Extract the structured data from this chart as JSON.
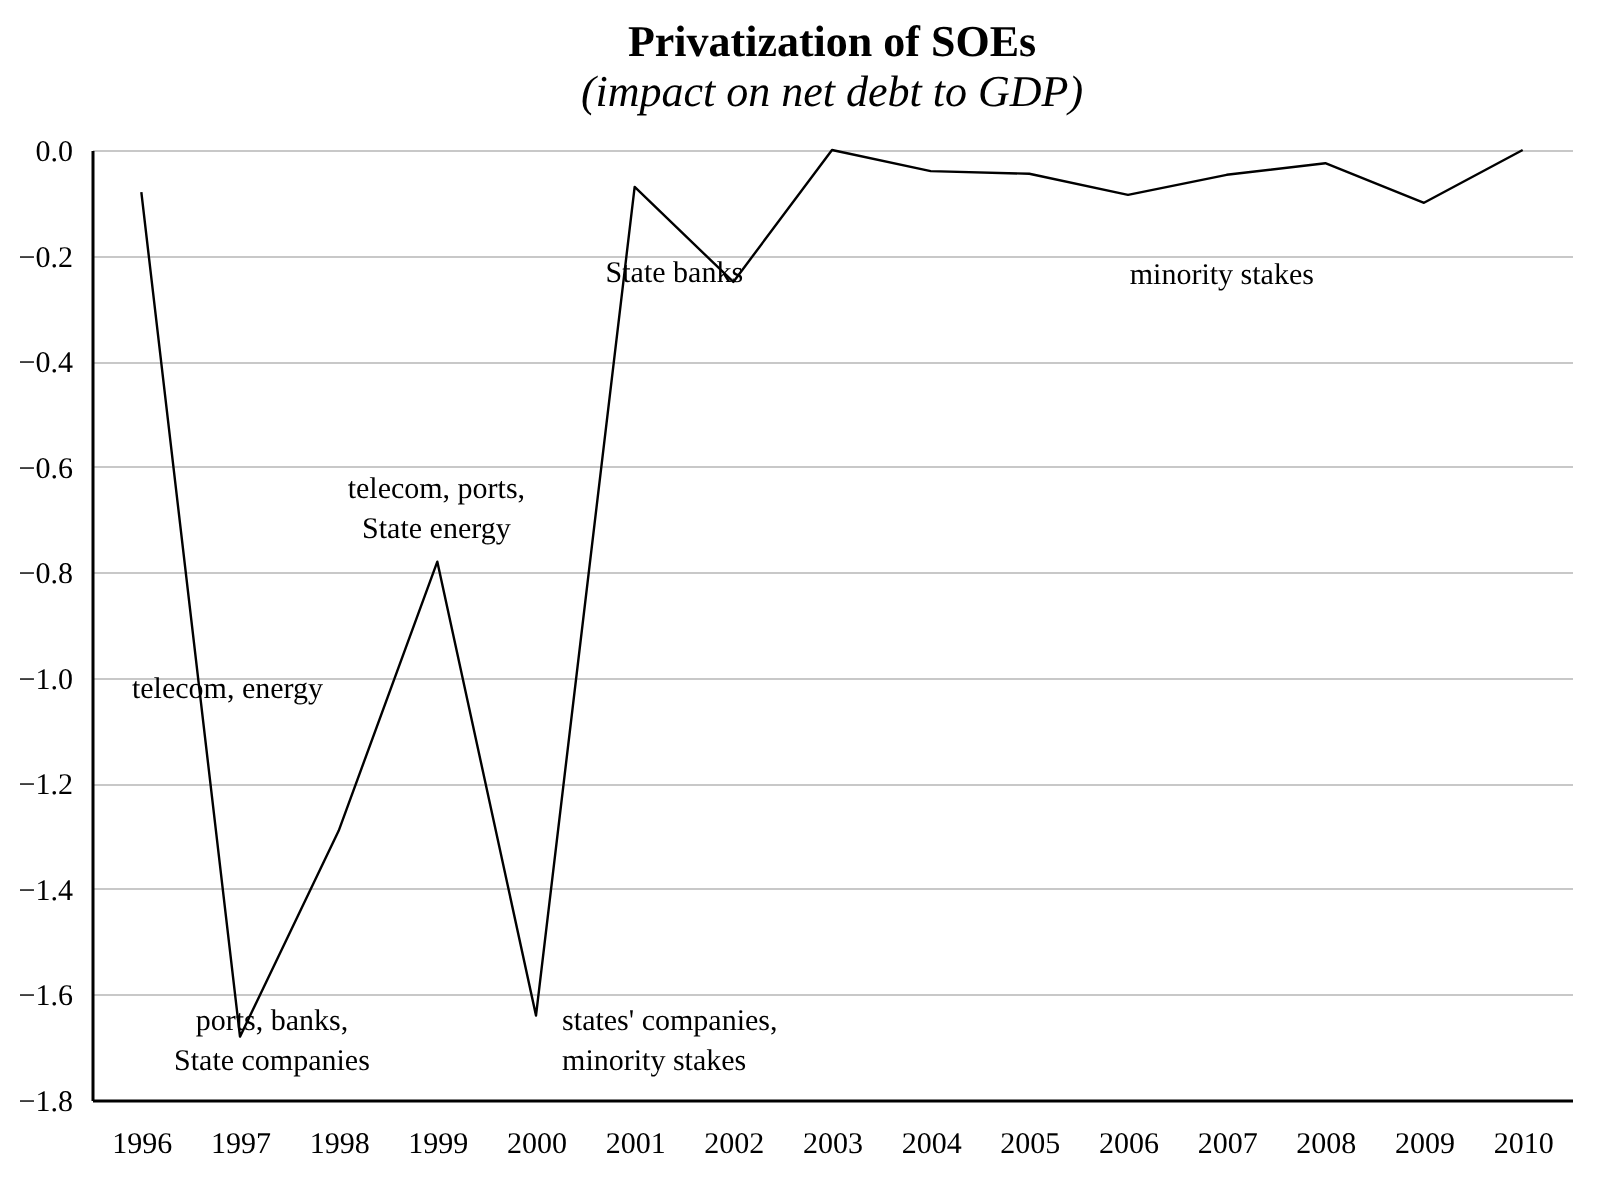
{
  "chart_data": {
    "type": "line",
    "title": "Privatization of SOEs",
    "subtitle": "(impact on net debt to GDP)",
    "categories": [
      "1996",
      "1997",
      "1998",
      "1999",
      "2000",
      "2001",
      "2002",
      "2003",
      "2004",
      "2005",
      "2006",
      "2007",
      "2008",
      "2009",
      "2010"
    ],
    "series": [
      {
        "color": "#000000",
        "values": [
          -0.08,
          -1.68,
          -1.29,
          -0.78,
          -1.64,
          -0.07,
          -0.25,
          0,
          -0.04,
          -0.045,
          -0.085,
          -0.047,
          -0.025,
          -0.1,
          0
        ]
      }
    ],
    "ylim": [
      -1.8,
      0
    ],
    "yticks": [
      {
        "value": 0,
        "label": "0.0"
      },
      -0.2,
      -0.4,
      -0.6,
      -0.8,
      {
        "value": -1,
        "label": "−1.0"
      },
      -1.2,
      -1.4,
      -1.6,
      -1.8
    ],
    "grid": "y",
    "legend": false,
    "marker": "none",
    "line_style": "solid",
    "annotations": [
      "telecom, energy",
      "ports, banks,\nState companies",
      "telecom, ports,\nState energy",
      "states' companies,\nminority stakes",
      "State banks",
      "minority stakes"
    ]
  }
}
